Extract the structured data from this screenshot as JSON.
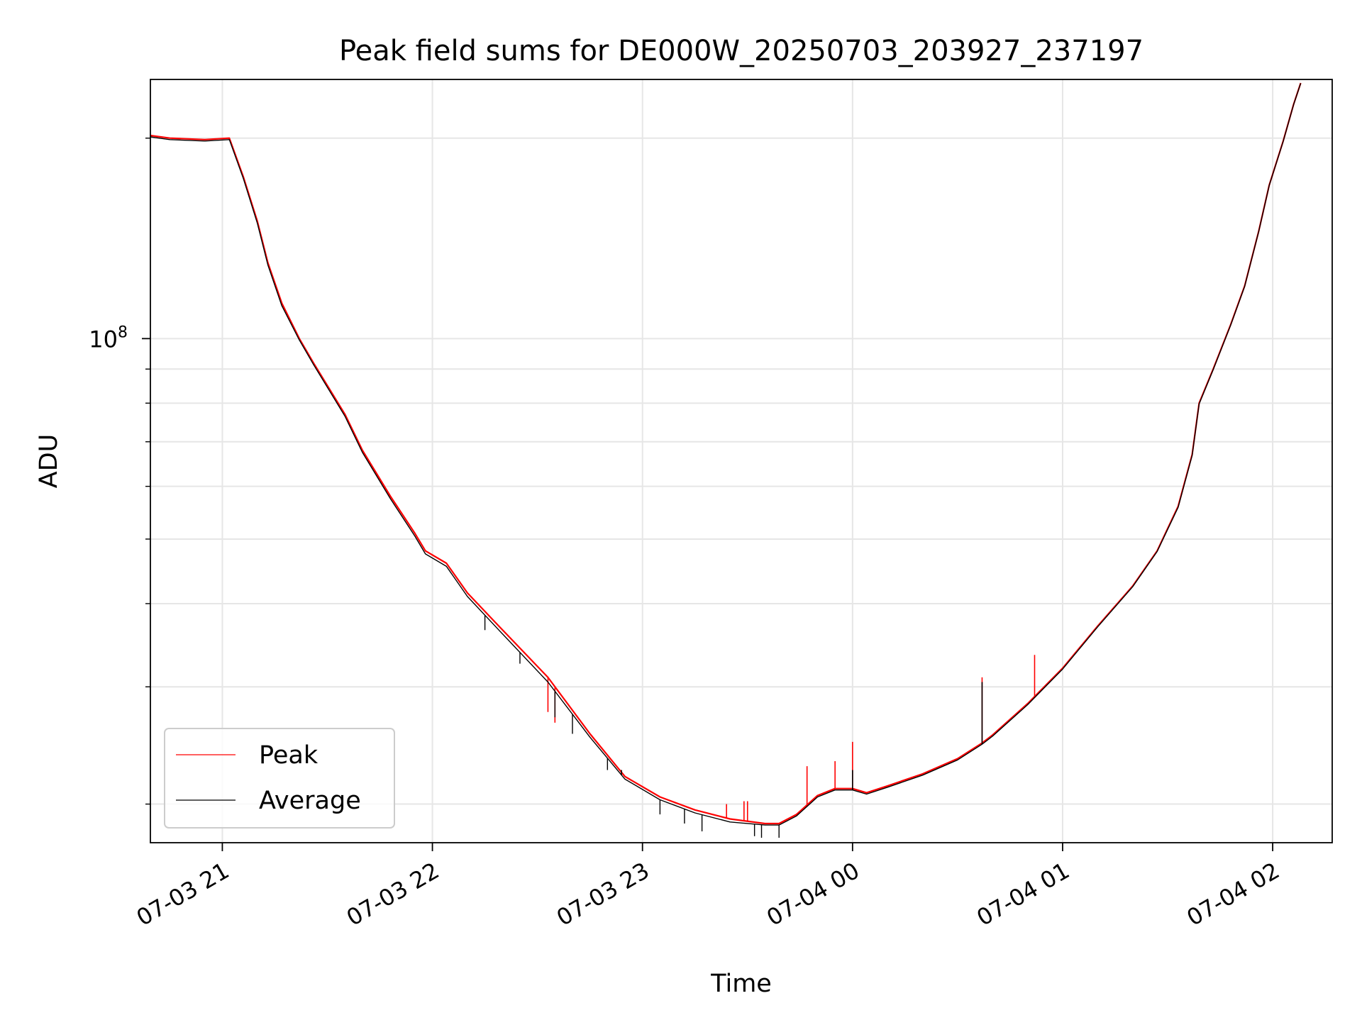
{
  "colors": {
    "peak": "#ff0000",
    "average": "#000000",
    "grid": "#e6e6e6",
    "axes": "#000000",
    "background": "#ffffff"
  },
  "chart_data": {
    "type": "line",
    "title": "Peak field sums for DE000W_20250703_203927_237197",
    "xlabel": "Time",
    "ylabel": "ADU",
    "y_scale": "log",
    "grid": true,
    "legend_position": "lower left",
    "xlim": [
      "2025-07-03 20:39:27",
      "2025-07-04 02:17:00"
    ],
    "ylim": [
      17500000,
      245000000
    ],
    "x_ticks": [
      {
        "value": "2025-07-03 21:00",
        "label": "07-03 21"
      },
      {
        "value": "2025-07-03 22:00",
        "label": "07-03 22"
      },
      {
        "value": "2025-07-03 23:00",
        "label": "07-03 23"
      },
      {
        "value": "2025-07-04 00:00",
        "label": "07-04 00"
      },
      {
        "value": "2025-07-04 01:00",
        "label": "07-04 01"
      },
      {
        "value": "2025-07-04 02:00",
        "label": "07-04 02"
      }
    ],
    "y_major_ticks": [
      {
        "value": 100000000,
        "base": "10",
        "exponent": "8"
      }
    ],
    "y_minor_ticks": [
      20000000,
      30000000,
      40000000,
      50000000,
      60000000,
      70000000,
      80000000,
      90000000,
      200000000
    ],
    "series": [
      {
        "name": "Peak",
        "color": "#ff0000",
        "points": [
          [
            "2025-07-03 20:39",
            202000000
          ],
          [
            "2025-07-03 20:45",
            200000000
          ],
          [
            "2025-07-03 20:55",
            199000000
          ],
          [
            "2025-07-03 21:02",
            200000000
          ],
          [
            "2025-07-03 21:06",
            175000000
          ],
          [
            "2025-07-03 21:10",
            150000000
          ],
          [
            "2025-07-03 21:13",
            130000000
          ],
          [
            "2025-07-03 21:17",
            113000000
          ],
          [
            "2025-07-03 21:22",
            100000000
          ],
          [
            "2025-07-03 21:26",
            92000000
          ],
          [
            "2025-07-03 21:30",
            85000000
          ],
          [
            "2025-07-03 21:35",
            77000000
          ],
          [
            "2025-07-03 21:40",
            68000000
          ],
          [
            "2025-07-03 21:48",
            58000000
          ],
          [
            "2025-07-03 21:55",
            51000000
          ],
          [
            "2025-07-03 21:58",
            48000000
          ],
          [
            "2025-07-03 22:04",
            46000000
          ],
          [
            "2025-07-03 22:10",
            41500000
          ],
          [
            "2025-07-03 22:19",
            37000000
          ],
          [
            "2025-07-03 22:33",
            31000000
          ],
          [
            "2025-07-03 22:45",
            25500000
          ],
          [
            "2025-07-03 22:55",
            22000000
          ],
          [
            "2025-07-03 23:05",
            20500000
          ],
          [
            "2025-07-03 23:15",
            19600000
          ],
          [
            "2025-07-03 23:25",
            19000000
          ],
          [
            "2025-07-03 23:35",
            18700000
          ],
          [
            "2025-07-03 23:39",
            18700000
          ],
          [
            "2025-07-03 23:44",
            19300000
          ],
          [
            "2025-07-03 23:50",
            20600000
          ],
          [
            "2025-07-03 23:55",
            21100000
          ],
          [
            "2025-07-04 00:00",
            21100000
          ],
          [
            "2025-07-04 00:04",
            20800000
          ],
          [
            "2025-07-04 00:10",
            21300000
          ],
          [
            "2025-07-04 00:20",
            22200000
          ],
          [
            "2025-07-04 00:30",
            23400000
          ],
          [
            "2025-07-04 00:37",
            24700000
          ],
          [
            "2025-07-04 00:40",
            25400000
          ],
          [
            "2025-07-04 00:50",
            28300000
          ],
          [
            "2025-07-04 01:00",
            32000000
          ],
          [
            "2025-07-04 01:10",
            37000000
          ],
          [
            "2025-07-04 01:20",
            42500000
          ],
          [
            "2025-07-04 01:27",
            48000000
          ],
          [
            "2025-07-04 01:33",
            56000000
          ],
          [
            "2025-07-04 01:37",
            67000000
          ],
          [
            "2025-07-04 01:39",
            80000000
          ],
          [
            "2025-07-04 01:43",
            90000000
          ],
          [
            "2025-07-04 01:48",
            105000000
          ],
          [
            "2025-07-04 01:52",
            120000000
          ],
          [
            "2025-07-04 01:56",
            145000000
          ],
          [
            "2025-07-04 01:59",
            170000000
          ],
          [
            "2025-07-04 02:03",
            198000000
          ],
          [
            "2025-07-04 02:06",
            225000000
          ],
          [
            "2025-07-04 02:08",
            242000000
          ]
        ],
        "spikes": [
          [
            "2025-07-03 22:33",
            27500000
          ],
          [
            "2025-07-03 22:35",
            26500000
          ],
          [
            "2025-07-03 23:24",
            20000000
          ],
          [
            "2025-07-03 23:29",
            20200000
          ],
          [
            "2025-07-03 23:30",
            20200000
          ],
          [
            "2025-07-03 23:47",
            22800000
          ],
          [
            "2025-07-03 23:55",
            23200000
          ],
          [
            "2025-07-04 00:00",
            24800000
          ],
          [
            "2025-07-04 00:37",
            31000000
          ],
          [
            "2025-07-04 00:52",
            33500000
          ]
        ]
      },
      {
        "name": "Average",
        "color": "#000000",
        "points": [
          [
            "2025-07-03 20:39",
            201000000
          ],
          [
            "2025-07-03 20:45",
            199000000
          ],
          [
            "2025-07-03 20:55",
            198000000
          ],
          [
            "2025-07-03 21:02",
            199000000
          ],
          [
            "2025-07-03 21:06",
            174000000
          ],
          [
            "2025-07-03 21:10",
            149000000
          ],
          [
            "2025-07-03 21:13",
            129000000
          ],
          [
            "2025-07-03 21:17",
            112000000
          ],
          [
            "2025-07-03 21:22",
            99500000
          ],
          [
            "2025-07-03 21:26",
            91500000
          ],
          [
            "2025-07-03 21:30",
            84500000
          ],
          [
            "2025-07-03 21:35",
            76500000
          ],
          [
            "2025-07-03 21:40",
            67500000
          ],
          [
            "2025-07-03 21:48",
            57500000
          ],
          [
            "2025-07-03 21:55",
            50500000
          ],
          [
            "2025-07-03 21:58",
            47500000
          ],
          [
            "2025-07-03 22:04",
            45500000
          ],
          [
            "2025-07-03 22:10",
            41000000
          ],
          [
            "2025-07-03 22:19",
            36500000
          ],
          [
            "2025-07-03 22:33",
            30500000
          ],
          [
            "2025-07-03 22:45",
            25200000
          ],
          [
            "2025-07-03 22:55",
            21800000
          ],
          [
            "2025-07-03 23:05",
            20300000
          ],
          [
            "2025-07-03 23:15",
            19400000
          ],
          [
            "2025-07-03 23:25",
            18800000
          ],
          [
            "2025-07-03 23:35",
            18600000
          ],
          [
            "2025-07-03 23:39",
            18600000
          ],
          [
            "2025-07-03 23:44",
            19200000
          ],
          [
            "2025-07-03 23:50",
            20500000
          ],
          [
            "2025-07-03 23:55",
            21000000
          ],
          [
            "2025-07-04 00:00",
            21000000
          ],
          [
            "2025-07-04 00:04",
            20700000
          ],
          [
            "2025-07-04 00:10",
            21200000
          ],
          [
            "2025-07-04 00:20",
            22100000
          ],
          [
            "2025-07-04 00:30",
            23300000
          ],
          [
            "2025-07-04 00:37",
            24600000
          ],
          [
            "2025-07-04 00:40",
            25300000
          ],
          [
            "2025-07-04 00:50",
            28200000
          ],
          [
            "2025-07-04 01:00",
            31900000
          ],
          [
            "2025-07-04 01:10",
            36900000
          ],
          [
            "2025-07-04 01:20",
            42400000
          ],
          [
            "2025-07-04 01:27",
            47900000
          ],
          [
            "2025-07-04 01:33",
            55800000
          ],
          [
            "2025-07-04 01:37",
            66800000
          ],
          [
            "2025-07-04 01:39",
            79800000
          ],
          [
            "2025-07-04 01:43",
            89800000
          ],
          [
            "2025-07-04 01:48",
            104800000
          ],
          [
            "2025-07-04 01:52",
            119800000
          ],
          [
            "2025-07-04 01:56",
            144800000
          ],
          [
            "2025-07-04 01:59",
            169800000
          ],
          [
            "2025-07-04 02:03",
            197800000
          ],
          [
            "2025-07-04 02:06",
            224800000
          ],
          [
            "2025-07-04 02:08",
            241800000
          ]
        ],
        "spikes": [
          [
            "2025-07-03 22:54",
            22500000
          ],
          [
            "2025-07-04 00:00",
            22500000
          ],
          [
            "2025-07-04 00:37",
            30500000
          ]
        ],
        "dips": [
          [
            "2025-07-03 22:15",
            36500000
          ],
          [
            "2025-07-03 22:25",
            32500000
          ],
          [
            "2025-07-03 22:35",
            27000000
          ],
          [
            "2025-07-03 22:40",
            25500000
          ],
          [
            "2025-07-03 22:50",
            22500000
          ],
          [
            "2025-07-03 23:05",
            19300000
          ],
          [
            "2025-07-03 23:12",
            18700000
          ],
          [
            "2025-07-03 23:17",
            18200000
          ],
          [
            "2025-07-03 23:32",
            17900000
          ],
          [
            "2025-07-03 23:34",
            17800000
          ],
          [
            "2025-07-03 23:39",
            17800000
          ]
        ]
      }
    ]
  }
}
